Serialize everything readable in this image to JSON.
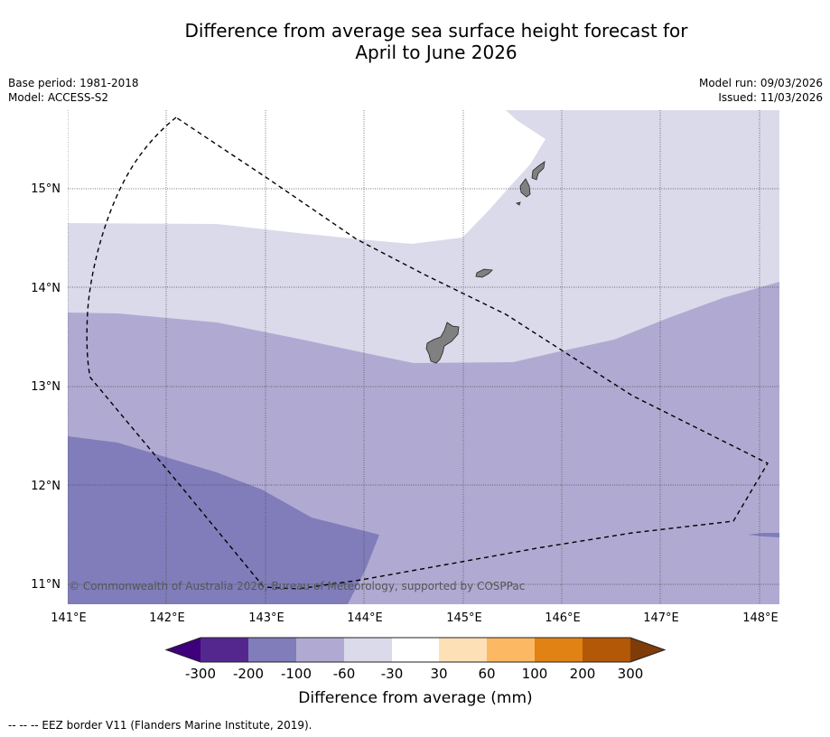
{
  "header": {
    "title_line1": "Difference from average sea surface height forecast for",
    "title_line2": "April to June 2026",
    "base_period": "Base period: 1981-2018",
    "model": "Model: ACCESS-S2",
    "model_run": "Model run: 09/03/2026",
    "issued": "Issued: 11/03/2026"
  },
  "map": {
    "lat_labels": [
      "15°N",
      "14°N",
      "13°N",
      "12°N",
      "11°N"
    ],
    "lon_labels": [
      "141°E",
      "142°E",
      "143°E",
      "144°E",
      "145°E",
      "146°E",
      "147°E",
      "148°E"
    ],
    "copyright": "© Commonwealth of Australia 2026, Bureau of Meteorology, supported by COSPPac"
  },
  "colorbar": {
    "labels": [
      "-300",
      "-200",
      "-100",
      "-60",
      "-30",
      "30",
      "60",
      "100",
      "200",
      "300"
    ],
    "colors": [
      "#3f007d",
      "#54278f",
      "#807dba",
      "#b0aad2",
      "#dadaeb",
      "#ffffff",
      "#fee0b6",
      "#fdb863",
      "#e08214",
      "#b35806",
      "#7f3b08"
    ],
    "title": "Difference from average (mm)"
  },
  "footer": {
    "eez_note": "--  --  -- EEZ border V11 (Flanders Marine Institute, 2019)."
  }
}
